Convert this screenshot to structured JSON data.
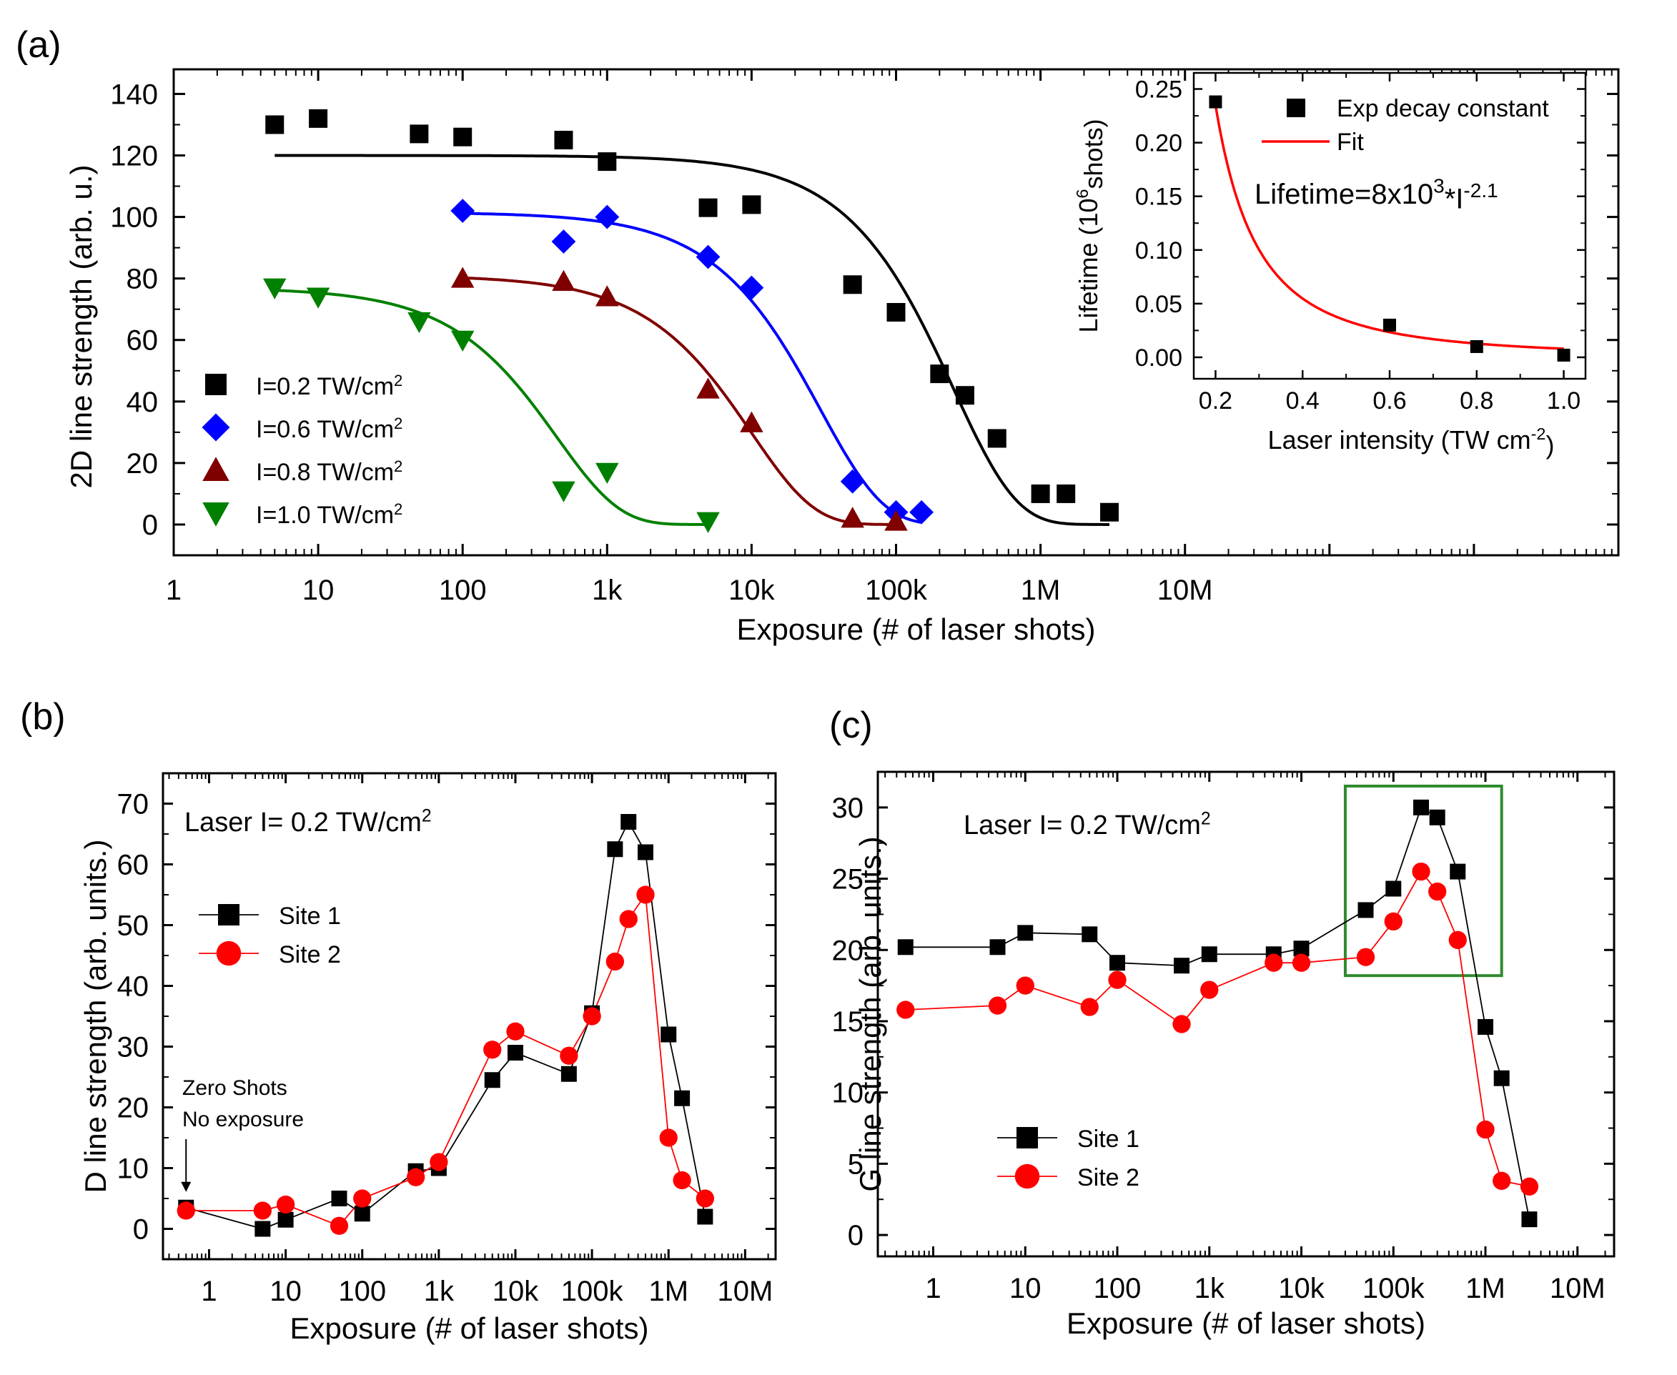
{
  "panel_labels": {
    "a": "(a)",
    "b": "(b)",
    "c": "(c)"
  },
  "colors": {
    "black": "#000000",
    "blue": "#0000ff",
    "darkred": "#800000",
    "green": "#008000",
    "red": "#ff0000",
    "box_green": "#2e8b2e"
  },
  "chart_data": [
    {
      "id": "a",
      "type": "scatter",
      "xscale": "log",
      "xlabel": "Exposure (# of laser shots)",
      "ylabel": "2D line strength (arb. u.)",
      "xlim": [
        1,
        10000000000
      ],
      "ylim": [
        -10,
        148
      ],
      "xticks": [
        {
          "v": 1,
          "label": "1"
        },
        {
          "v": 10,
          "label": "10"
        },
        {
          "v": 100,
          "label": "100"
        },
        {
          "v": 1000,
          "label": "1k"
        },
        {
          "v": 10000,
          "label": "10k"
        },
        {
          "v": 100000,
          "label": "100k"
        },
        {
          "v": 1000000,
          "label": "1M"
        },
        {
          "v": 10000000,
          "label": "10M"
        }
      ],
      "yticks": [
        0,
        20,
        40,
        60,
        80,
        100,
        120,
        140
      ],
      "series": [
        {
          "name_main": "I=0.2 TW/cm",
          "name_sup": "2",
          "marker": "square",
          "color": "#000000",
          "x": [
            5,
            10,
            50,
            100,
            500,
            1000,
            5000,
            10000,
            50000,
            100000,
            200000,
            300000,
            500000,
            1000000,
            1500000,
            3000000
          ],
          "y": [
            130,
            132,
            127,
            126,
            125,
            118,
            103,
            104,
            78,
            69,
            49,
            42,
            28,
            10,
            10,
            4
          ],
          "fit": {
            "A": 120,
            "tau": 250000,
            "x_from": 5,
            "x_to": 3000000
          }
        },
        {
          "name_main": "I=0.6 TW/cm",
          "name_sup": "2",
          "marker": "diamond",
          "color": "#0000ff",
          "x": [
            100,
            500,
            1000,
            5000,
            10000,
            50000,
            100000,
            150000
          ],
          "y": [
            102,
            92,
            100,
            87,
            77,
            14,
            4,
            4
          ],
          "fit": {
            "A": 101.5,
            "tau": 30000,
            "x_from": 100,
            "x_to": 150000
          }
        },
        {
          "name_main": "I=0.8 TW/cm",
          "name_sup": "2",
          "marker": "triangle-up",
          "color": "#800000",
          "x": [
            100,
            500,
            1000,
            5000,
            10000,
            50000,
            100000
          ],
          "y": [
            80,
            79,
            74,
            44,
            33,
            2,
            1
          ],
          "fit": {
            "A": 81,
            "tau": 10000,
            "x_from": 100,
            "x_to": 100000
          }
        },
        {
          "name_main": "I=1.0 TW/cm",
          "name_sup": "2",
          "marker": "triangle-down",
          "color": "#008000",
          "x": [
            5,
            10,
            50,
            100,
            500,
            1000,
            5000
          ],
          "y": [
            77,
            74,
            66,
            60,
            11,
            17,
            1
          ],
          "fit": {
            "A": 77,
            "tau": 450,
            "x_from": 5,
            "x_to": 5000
          }
        }
      ],
      "inset": {
        "type": "scatter",
        "xlabel_main": "Laser intensity (TW cm",
        "xlabel_sup": "-2",
        "xlabel_end": ")",
        "ylabel_main": "Lifetime (10",
        "ylabel_sup": "6",
        "ylabel_end": "shots)",
        "xlim": [
          0.15,
          1.05
        ],
        "ylim": [
          -0.02,
          0.265
        ],
        "xticks": [
          "0.2",
          "0.4",
          "0.6",
          "0.8",
          "1.0"
        ],
        "yticks": [
          "0.00",
          "0.05",
          "0.10",
          "0.15",
          "0.20",
          "0.25"
        ],
        "points": {
          "x": [
            0.2,
            0.6,
            0.8,
            1.0
          ],
          "y": [
            0.238,
            0.03,
            0.01,
            0.002
          ]
        },
        "fit": {
          "a": 0.008,
          "b": -2.1,
          "x_from": 0.2,
          "x_to": 1.0
        },
        "legend": [
          {
            "label": "Exp decay constant",
            "marker": "square",
            "color": "#000000"
          },
          {
            "label": "Fit",
            "marker": "line",
            "color": "#ff0000"
          }
        ],
        "equation_main": "Lifetime=8x10",
        "equation_sup1": "3",
        "equation_mid": "*I",
        "equation_sup2": "-2.1"
      }
    },
    {
      "id": "b",
      "type": "line",
      "xscale": "log",
      "xlabel": "Exposure (# of laser shots)",
      "ylabel": "D line strength (arb. units.)",
      "xlim": [
        0.25,
        25000000
      ],
      "ylim": [
        -5,
        75
      ],
      "xticks": [
        {
          "v": 1,
          "label": "1"
        },
        {
          "v": 10,
          "label": "10"
        },
        {
          "v": 100,
          "label": "100"
        },
        {
          "v": 1000,
          "label": "1k"
        },
        {
          "v": 10000,
          "label": "10k"
        },
        {
          "v": 100000,
          "label": "100k"
        },
        {
          "v": 1000000,
          "label": "1M"
        },
        {
          "v": 10000000,
          "label": "10M"
        }
      ],
      "yticks": [
        0,
        10,
        20,
        30,
        40,
        50,
        60,
        70
      ],
      "annotation_main": "Laser I= 0.2 TW/cm",
      "annotation_sup": "2",
      "arrow_note": [
        "Zero Shots",
        "No exposure"
      ],
      "series": [
        {
          "name": "Site 1",
          "marker": "square",
          "color": "#000000",
          "x": [
            0.5,
            5,
            10,
            50,
            100,
            500,
            1000,
            5000,
            10000,
            50000,
            100000,
            200000,
            300000,
            500000,
            1000000,
            1500000,
            3000000
          ],
          "y": [
            3.5,
            0,
            1.5,
            5,
            2.5,
            9.5,
            10,
            24.5,
            29,
            25.5,
            35.5,
            62.5,
            67,
            62,
            32,
            21.5,
            2
          ]
        },
        {
          "name": "Site 2",
          "marker": "circle",
          "color": "#ff0000",
          "x": [
            0.5,
            5,
            10,
            50,
            100,
            500,
            1000,
            5000,
            10000,
            50000,
            100000,
            200000,
            300000,
            500000,
            1000000,
            1500000,
            3000000
          ],
          "y": [
            3,
            3,
            4,
            0.5,
            5,
            8.5,
            11,
            29.5,
            32.5,
            28.5,
            35,
            44,
            51,
            55,
            15,
            8,
            5
          ]
        }
      ]
    },
    {
      "id": "c",
      "type": "line",
      "xscale": "log",
      "xlabel": "Exposure (# of laser shots)",
      "ylabel": "G line strength (arb. units.)",
      "xlim": [
        0.25,
        25000000
      ],
      "ylim": [
        -1.5,
        32.5
      ],
      "xticks": [
        {
          "v": 1,
          "label": "1"
        },
        {
          "v": 10,
          "label": "10"
        },
        {
          "v": 100,
          "label": "100"
        },
        {
          "v": 1000,
          "label": "1k"
        },
        {
          "v": 10000,
          "label": "10k"
        },
        {
          "v": 100000,
          "label": "100k"
        },
        {
          "v": 1000000,
          "label": "1M"
        },
        {
          "v": 10000000,
          "label": "10M"
        }
      ],
      "yticks": [
        0,
        5,
        10,
        15,
        20,
        25,
        30
      ],
      "annotation_main": "Laser I= 0.2 TW/cm",
      "annotation_sup": "2",
      "highlight_box": {
        "x_from": 30000,
        "x_to": 1500000,
        "y_from": 18.2,
        "y_to": 31.5,
        "color": "#2e8b2e"
      },
      "series": [
        {
          "name": "Site 1",
          "marker": "square",
          "color": "#000000",
          "x": [
            0.5,
            5,
            10,
            50,
            100,
            500,
            1000,
            5000,
            10000,
            50000,
            100000,
            200000,
            300000,
            500000,
            1000000,
            1500000,
            3000000
          ],
          "y": [
            20.2,
            20.2,
            21.2,
            21.1,
            19.1,
            18.9,
            19.7,
            19.7,
            20.1,
            22.8,
            24.3,
            30,
            29.3,
            25.5,
            14.6,
            11,
            1.1
          ]
        },
        {
          "name": "Site 2",
          "marker": "circle",
          "color": "#ff0000",
          "x": [
            0.5,
            5,
            10,
            50,
            100,
            500,
            1000,
            5000,
            10000,
            50000,
            100000,
            200000,
            300000,
            500000,
            1000000,
            1500000,
            3000000
          ],
          "y": [
            15.8,
            16.1,
            17.5,
            16,
            17.9,
            14.8,
            17.2,
            19.1,
            19.1,
            19.5,
            22,
            25.5,
            24.1,
            20.7,
            7.4,
            3.8,
            3.4
          ]
        }
      ]
    }
  ]
}
